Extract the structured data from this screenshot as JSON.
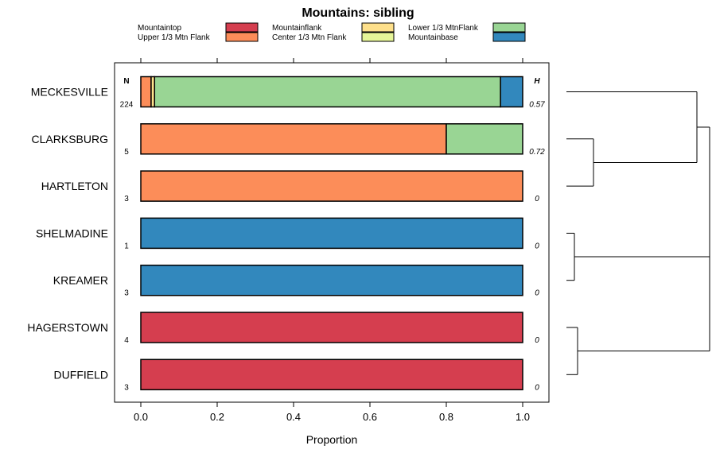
{
  "chart_data": {
    "type": "bar",
    "orientation": "horizontal",
    "stacked": true,
    "title": "Mountains: sibling",
    "xlabel": "Proportion",
    "ylabel": "",
    "xlim": [
      0,
      1
    ],
    "x_ticks": [
      "0.0",
      "0.2",
      "0.4",
      "0.6",
      "0.8",
      "1.0"
    ],
    "x_tick_values": [
      0,
      0.2,
      0.4,
      0.6,
      0.8,
      1.0
    ],
    "legend_position": "top",
    "n_header": "N",
    "h_header": "H",
    "categories": [
      "MECKESVILLE",
      "CLARKSBURG",
      "HARTLETON",
      "SHELMADINE",
      "KREAMER",
      "HAGERSTOWN",
      "DUFFIELD"
    ],
    "n_values": [
      "224",
      "5",
      "3",
      "1",
      "3",
      "4",
      "3"
    ],
    "h_values": [
      "0.57",
      "0.72",
      "0",
      "0",
      "0",
      "0",
      "0"
    ],
    "series": [
      {
        "name": "Mountaintop",
        "color": "#d53e4f",
        "values": [
          0,
          0,
          0,
          0,
          0,
          1,
          1
        ]
      },
      {
        "name": "Upper 1/3 Mtn Flank",
        "color": "#fc8d59",
        "values": [
          0.027,
          0.8,
          1,
          0,
          0,
          0,
          0
        ]
      },
      {
        "name": "Mountainflank",
        "color": "#fee08b",
        "values": [
          0.009,
          0,
          0,
          0,
          0,
          0,
          0
        ]
      },
      {
        "name": "Center 1/3 Mtn Flank",
        "color": "#e6f598",
        "values": [
          0,
          0,
          0,
          0,
          0,
          0,
          0
        ]
      },
      {
        "name": "Lower 1/3 MtnFlank",
        "color": "#99d594",
        "values": [
          0.906,
          0.2,
          0,
          0,
          0,
          0,
          0
        ]
      },
      {
        "name": "Mountainbase",
        "color": "#3288bd",
        "values": [
          0.058,
          0,
          0,
          1,
          1,
          0,
          0
        ]
      }
    ],
    "dendrogram": {
      "clusters": [
        {
          "members": [
            "CLARKSBURG",
            "HARTLETON"
          ]
        },
        {
          "members": [
            "MECKESVILLE",
            "CLARKSBURG",
            "HARTLETON"
          ]
        },
        {
          "members": [
            "SHELMADINE",
            "KREAMER"
          ]
        },
        {
          "members": [
            "HAGERSTOWN",
            "DUFFIELD"
          ]
        },
        {
          "members": [
            "SHELMADINE",
            "KREAMER",
            "HAGERSTOWN",
            "DUFFIELD"
          ]
        },
        {
          "members": [
            "all"
          ]
        }
      ]
    }
  }
}
